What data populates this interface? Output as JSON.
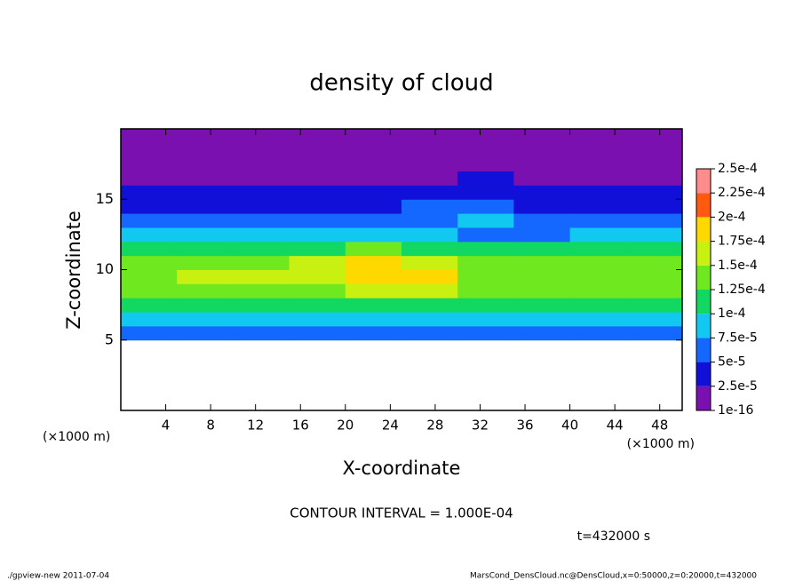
{
  "chart_data": {
    "type": "heatmap",
    "title": "density of cloud",
    "x_label": "X-coordinate",
    "y_label": "Z-coordinate",
    "x_unit_left": "(×1000 m)",
    "x_unit_right": "(×1000 m)",
    "annotation": "CONTOUR INTERVAL = 1.000E-04",
    "time_label": "t=432000 s",
    "footer_left": "./gpview-new  2011-07-04",
    "footer_right": "MarsCond_DensCloud.nc@DensCloud,x=0:50000,z=0:20000,t=432000",
    "xlim": [
      0,
      50
    ],
    "ylim": [
      0,
      20
    ],
    "xticks": [
      4,
      8,
      12,
      16,
      20,
      24,
      28,
      32,
      36,
      40,
      44,
      48
    ],
    "yticks": [
      5,
      10,
      15
    ],
    "x": [
      2.5,
      7.5,
      12.5,
      17.5,
      22.5,
      27.5,
      32.5,
      37.5,
      42.5,
      47.5
    ],
    "z": [
      0.5,
      1.5,
      2.5,
      3.5,
      4.5,
      5.5,
      6.5,
      7.5,
      8.5,
      9.5,
      10.5,
      11.5,
      12.5,
      13.5,
      14.5,
      15.5,
      16.5,
      17.5,
      18.5,
      19.5
    ],
    "values": [
      [
        null,
        null,
        null,
        null,
        null,
        null,
        null,
        null,
        null,
        null
      ],
      [
        null,
        null,
        null,
        null,
        null,
        null,
        null,
        null,
        null,
        null
      ],
      [
        null,
        null,
        null,
        null,
        null,
        null,
        null,
        null,
        null,
        null
      ],
      [
        null,
        null,
        null,
        null,
        null,
        null,
        null,
        null,
        null,
        null
      ],
      [
        null,
        null,
        null,
        null,
        null,
        null,
        null,
        null,
        null,
        null
      ],
      [
        5e-05,
        5e-05,
        5e-05,
        5e-05,
        5e-05,
        5e-05,
        5e-05,
        5e-05,
        5e-05,
        5e-05
      ],
      [
        9e-05,
        9e-05,
        9e-05,
        9e-05,
        9e-05,
        9e-05,
        9e-05,
        9e-05,
        9e-05,
        9e-05
      ],
      [
        0.00012,
        0.00012,
        0.00012,
        0.00012,
        0.00012,
        0.00012,
        0.00011,
        0.00011,
        0.00012,
        0.00012
      ],
      [
        0.000135,
        0.00014,
        0.00014,
        0.000145,
        0.00015,
        0.00015,
        0.00013,
        0.00013,
        0.00013,
        0.00013
      ],
      [
        0.000145,
        0.00015,
        0.00015,
        0.00016,
        0.00018,
        0.000175,
        0.000135,
        0.00014,
        0.00014,
        0.00014
      ],
      [
        0.00014,
        0.000145,
        0.000145,
        0.000155,
        0.000175,
        0.000165,
        0.00013,
        0.000135,
        0.00014,
        0.000135
      ],
      [
        0.00011,
        0.000115,
        0.000115,
        0.00012,
        0.000125,
        0.00012,
        0.000105,
        0.000105,
        0.00011,
        0.00011
      ],
      [
        8e-05,
        8e-05,
        8e-05,
        7.5e-05,
        8e-05,
        8.5e-05,
        7e-05,
        7e-05,
        8e-05,
        8e-05
      ],
      [
        6e-05,
        5.5e-05,
        5.5e-05,
        5e-05,
        6e-05,
        7e-05,
        7.5e-05,
        6.5e-05,
        6e-05,
        6e-05
      ],
      [
        4e-05,
        3.5e-05,
        3.5e-05,
        3.5e-05,
        4e-05,
        5e-05,
        6e-05,
        4.5e-05,
        4e-05,
        4e-05
      ],
      [
        3e-05,
        2.5e-05,
        3e-05,
        3e-05,
        2.5e-05,
        3e-05,
        4e-05,
        3e-05,
        3e-05,
        2.5e-05
      ],
      [
        2e-05,
        1.5e-05,
        2e-05,
        2e-05,
        2e-05,
        2e-05,
        2.5e-05,
        2e-05,
        2e-05,
        2e-05
      ],
      [
        1e-05,
        1e-05,
        1e-05,
        1e-05,
        1e-05,
        1e-05,
        1e-05,
        1e-05,
        1e-05,
        1e-05
      ],
      [
        5e-06,
        5e-06,
        5e-06,
        5e-06,
        5e-06,
        5e-06,
        5e-06,
        5e-06,
        5e-06,
        5e-06
      ],
      [
        3e-06,
        3e-06,
        3e-06,
        3e-06,
        3e-06,
        3e-06,
        3e-06,
        3e-06,
        3e-06,
        3e-06
      ]
    ],
    "colorbar": {
      "levels": [
        {
          "value": 1e-16,
          "label": "1e-16"
        },
        {
          "value": 2.5e-05,
          "label": "2.5e-5"
        },
        {
          "value": 5e-05,
          "label": "5e-5"
        },
        {
          "value": 7.5e-05,
          "label": "7.5e-5"
        },
        {
          "value": 0.0001,
          "label": "1e-4"
        },
        {
          "value": 0.000125,
          "label": "1.25e-4"
        },
        {
          "value": 0.00015,
          "label": "1.5e-4"
        },
        {
          "value": 0.000175,
          "label": "1.75e-4"
        },
        {
          "value": 0.0002,
          "label": "2e-4"
        },
        {
          "value": 0.000225,
          "label": "2.25e-4"
        },
        {
          "value": 0.00025,
          "label": "2.5e-4"
        }
      ],
      "colors": [
        "#7a10b0",
        "#1010d8",
        "#1468ff",
        "#10c8f0",
        "#10d860",
        "#70e820",
        "#c8f010",
        "#ffd800",
        "#ff5a10",
        "#ff8c8c"
      ]
    }
  }
}
